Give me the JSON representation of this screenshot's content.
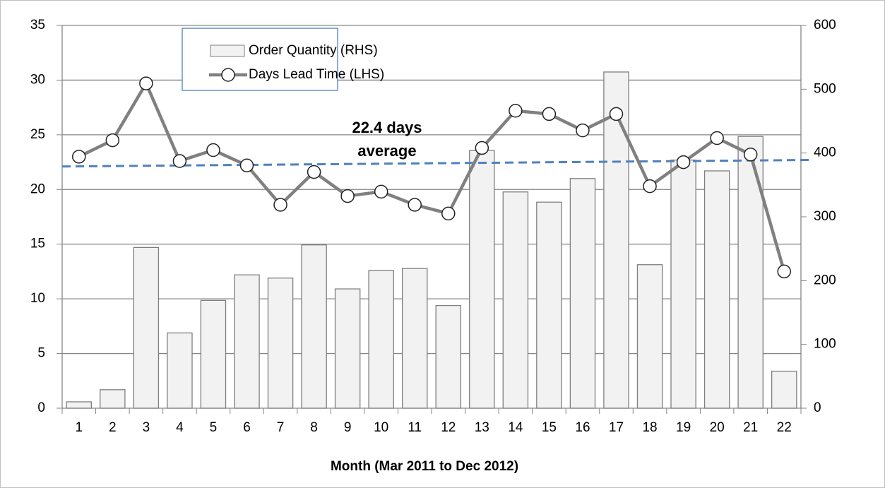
{
  "chart_data": {
    "type": "bar_line",
    "x_label": "Month (Mar 2011 to Dec 2012)",
    "categories": [
      1,
      2,
      3,
      4,
      5,
      6,
      7,
      8,
      9,
      10,
      11,
      12,
      13,
      14,
      15,
      16,
      17,
      18,
      19,
      20,
      21,
      22
    ],
    "series": [
      {
        "name": "Order Quantity (RHS)",
        "type": "bar",
        "axis": "y2",
        "color": "#f2f2f2",
        "edge_color": "#7f7f7f",
        "values": [
          10,
          29,
          252,
          118,
          169,
          209,
          204,
          256,
          187,
          216,
          219,
          161,
          404,
          339,
          323,
          360,
          527,
          225,
          389,
          372,
          426,
          58
        ]
      },
      {
        "name": "Days Lead Time (LHS)",
        "type": "line",
        "axis": "y",
        "color": "#808080",
        "values": [
          23.0,
          24.5,
          29.7,
          22.6,
          23.6,
          22.2,
          18.6,
          21.6,
          19.4,
          19.8,
          18.6,
          17.8,
          23.8,
          27.2,
          26.9,
          25.4,
          26.9,
          20.3,
          22.5,
          24.7,
          23.2,
          12.5
        ]
      }
    ],
    "trendline": {
      "color": "#4f81bd",
      "values": [
        22.1,
        22.7
      ]
    },
    "annotation": [
      "22.4 days",
      "average"
    ],
    "ylim": [
      0,
      35
    ],
    "yticks": [
      0,
      5,
      10,
      15,
      20,
      25,
      30,
      35
    ],
    "y2lim": [
      0,
      600
    ],
    "y2ticks": [
      0,
      100,
      200,
      300,
      400,
      500,
      600
    ],
    "grid": true
  }
}
